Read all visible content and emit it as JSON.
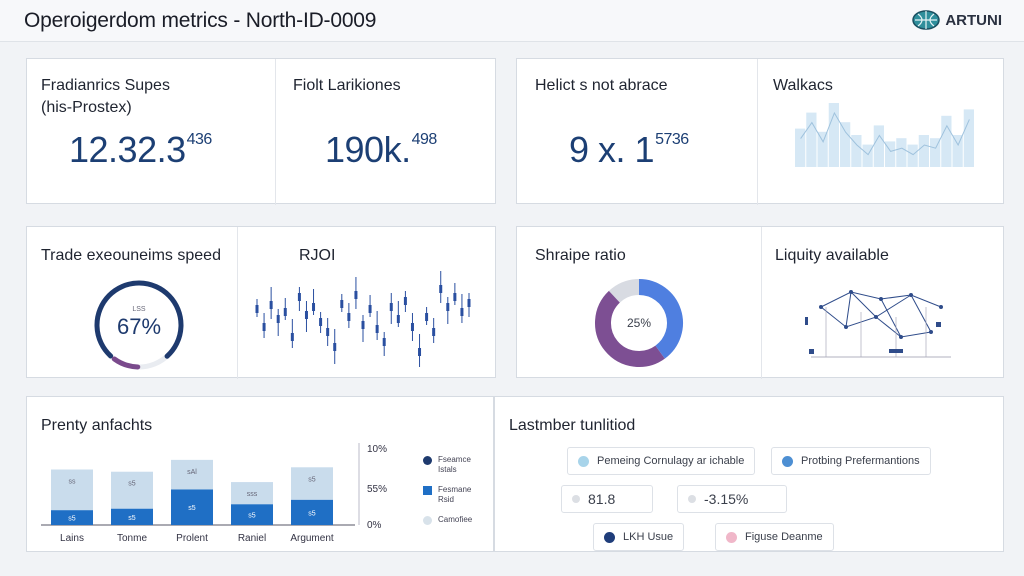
{
  "header": {
    "title": "Operoigerdom metrics - North-ID-0009",
    "logo_text": "ARTUNI",
    "logo_icon": "globe-icon"
  },
  "row1": {
    "card1": {
      "label_line1": "Fradianrics Supes",
      "label_line2": "(his-Prostex)",
      "value": "12.32.3",
      "sup": "436"
    },
    "card2": {
      "label": "Fiolt Larikiones",
      "value": "190k.",
      "sup": "498"
    },
    "card3": {
      "label": "Helict s not abrace",
      "value": "9 x. 1",
      "sup": "5736"
    },
    "card4": {
      "label": "Walkacs"
    }
  },
  "row2": {
    "gauge": {
      "label": "Trade exeouneims speed",
      "inner_label": "LSS",
      "value": "67%",
      "fraction": 0.67,
      "color": "#1e3a6e",
      "accent": "#7a4a8c"
    },
    "roi": {
      "label": "RJOI"
    },
    "sharpe": {
      "label": "Shraipe ratio",
      "value": "25%",
      "segments": [
        {
          "name": "blue",
          "fraction": 0.4,
          "color": "#4f7fe0"
        },
        {
          "name": "purple",
          "fraction": 0.48,
          "color": "#7d4f93"
        },
        {
          "name": "grey",
          "fraction": 0.12,
          "color": "#d8dbe2"
        }
      ]
    },
    "liquidity": {
      "label": "Liquity available"
    }
  },
  "row3": {
    "bar_card": {
      "label": "Prenty anfachts"
    },
    "timeline": {
      "label": "Lastmber tunlitiod",
      "pill1": {
        "text": "Pemeing Cornulagy ar ichable",
        "color": "#a8d4ea"
      },
      "pill2": {
        "text": "Protbing Prefermantions",
        "color": "#4d8fd3"
      },
      "pill3": {
        "text": "81.8",
        "color": "#dcdfe4"
      },
      "pill4": {
        "text": "-3.15%",
        "color": "#dcdfe4"
      },
      "pill5": {
        "text": "LKH Usue",
        "color": "#1f3d7a"
      },
      "pill6": {
        "text": "Figuse Deanme",
        "color": "#f0b7c9"
      }
    }
  },
  "chart_data": [
    {
      "type": "bar",
      "categories": [
        "Lains",
        "Tonme",
        "Prolent",
        "Raniel",
        "Argument"
      ],
      "series": [
        {
          "name": "Fseamce Istals",
          "values": [
            20,
            22,
            48,
            28,
            34
          ],
          "color": "#1f6fc5",
          "labels": [
            "s5",
            "s5",
            "s5",
            "s5",
            "s5"
          ]
        },
        {
          "name": "Fesmane Rsid",
          "values": [
            55,
            50,
            40,
            30,
            44
          ],
          "color": "#c9dcec",
          "labels": [
            "ss",
            "s5",
            "sAl",
            "sss",
            "s5"
          ]
        }
      ],
      "legend_extra": "Camofiee",
      "legend_colors": [
        "#1e3a6e",
        "#1f6fc5",
        "#d8e2ea"
      ],
      "yticks": [
        "10%",
        "55%",
        "0%"
      ],
      "ymax": 100
    },
    {
      "type": "line",
      "name": "RJOI",
      "values": [
        58,
        40,
        62,
        48,
        55,
        30,
        70,
        52,
        60,
        45,
        35,
        20,
        63,
        50,
        72,
        42,
        58,
        38,
        25,
        60,
        48,
        66,
        40,
        15,
        50,
        35,
        78,
        60,
        70,
        55,
        64
      ],
      "color": "#2a4fa0"
    },
    {
      "type": "bar",
      "name": "Walkacs",
      "values": [
        60,
        85,
        55,
        100,
        70,
        50,
        35,
        65,
        40,
        45,
        35,
        50,
        45,
        80,
        50,
        90
      ],
      "color": "#d6e8f5"
    }
  ]
}
